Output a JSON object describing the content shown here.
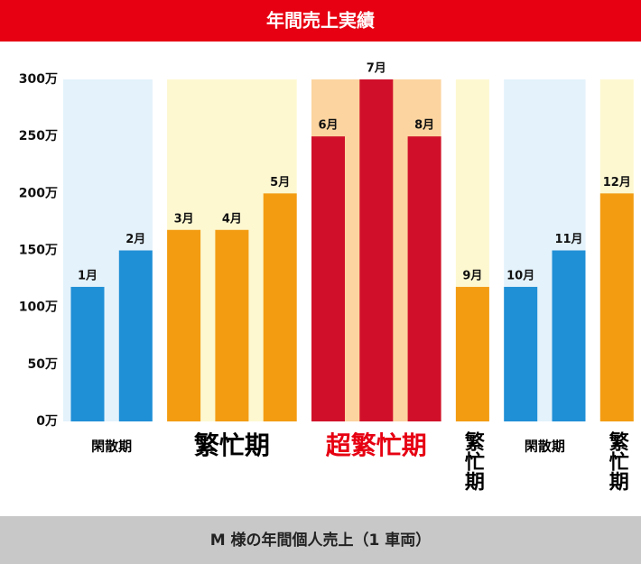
{
  "chart_data": {
    "type": "bar",
    "title": "年間売上実績",
    "footer": "M 様の年間個人売上（1 車両）",
    "categories": [
      "1月",
      "2月",
      "3月",
      "4月",
      "5月",
      "6月",
      "7月",
      "8月",
      "9月",
      "10月",
      "11月",
      "12月"
    ],
    "values": [
      118,
      150,
      168,
      168,
      200,
      250,
      300,
      250,
      118,
      118,
      150,
      200
    ],
    "colors": [
      "#1f8fd6",
      "#1f8fd6",
      "#f39c12",
      "#f39c12",
      "#f39c12",
      "#d0102a",
      "#d0102a",
      "#d0102a",
      "#f39c12",
      "#1f8fd6",
      "#1f8fd6",
      "#f39c12"
    ],
    "ylim": [
      0,
      300
    ],
    "yticks": [
      {
        "value": 0,
        "label": "0万"
      },
      {
        "value": 50,
        "label": "50万"
      },
      {
        "value": 100,
        "label": "100万"
      },
      {
        "value": 150,
        "label": "150万"
      },
      {
        "value": 200,
        "label": "200万"
      },
      {
        "value": 250,
        "label": "250万"
      },
      {
        "value": 300,
        "label": "300万"
      }
    ],
    "periods": [
      {
        "label": "閑散期",
        "span": 2,
        "color": "#e3f2fb"
      },
      {
        "label": "繁忙期",
        "span": 3,
        "color": "#fdf8d0"
      },
      {
        "label": "超繁忙期",
        "span": 3,
        "color": "#fcd49f",
        "label_color": "#e60012"
      },
      {
        "label": "繁忙期",
        "span": 1,
        "color": "#fdf8d0"
      },
      {
        "label": "閑散期",
        "span": 2,
        "color": "#e3f2fb"
      },
      {
        "label": "繁忙期",
        "span": 1,
        "color": "#fdf8d0"
      }
    ]
  }
}
